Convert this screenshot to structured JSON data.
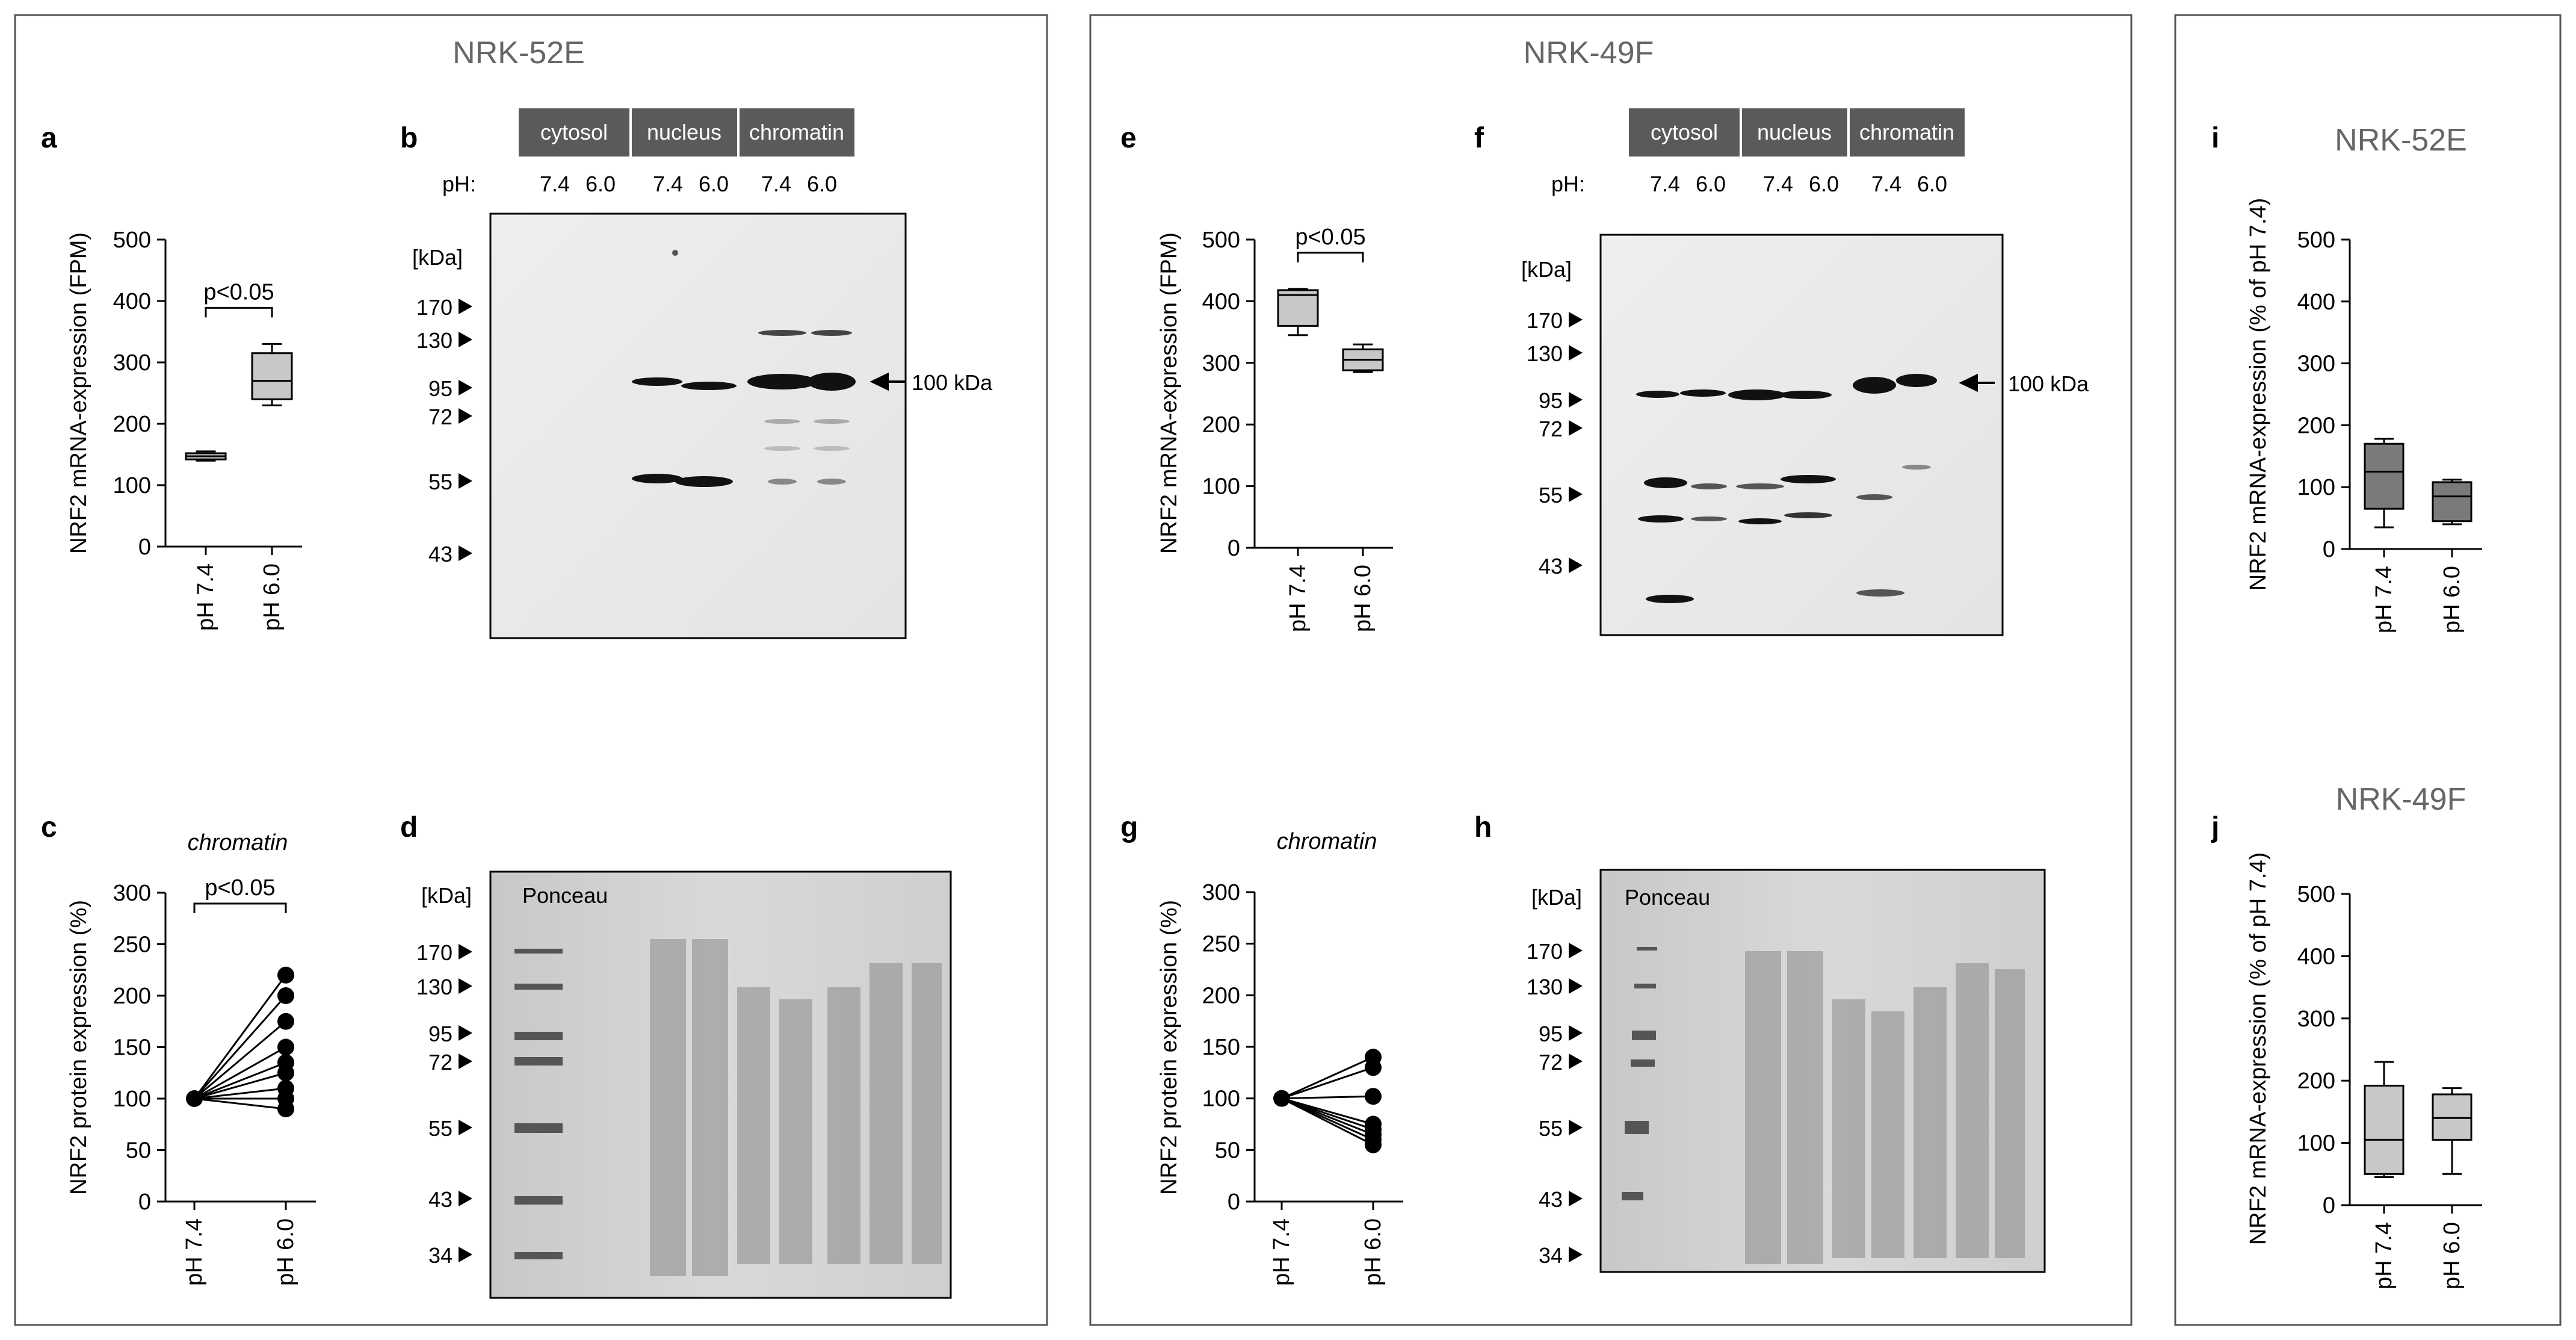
{
  "panels": {
    "left_title": "NRK-52E",
    "mid_title": "NRK-49F",
    "right_top_title": "NRK-52E",
    "right_bottom_title": "NRK-49F"
  },
  "letters": {
    "a": "a",
    "b": "b",
    "c": "c",
    "d": "d",
    "e": "e",
    "f": "f",
    "g": "g",
    "h": "h",
    "i": "i",
    "j": "j"
  },
  "blots": {
    "fractions": [
      "cytosol",
      "nucleus",
      "chromatin"
    ],
    "ph_label": "pH:",
    "lane_ph": [
      "7.4",
      "6.0"
    ],
    "kda_unit": "[kDa]",
    "markers_western": [
      "170",
      "130",
      "95",
      "72",
      "55",
      "43"
    ],
    "markers_ponceau": [
      "170",
      "130",
      "95",
      "72",
      "55",
      "43",
      "34"
    ],
    "band_label": "100 kDa",
    "ponceau_label": "Ponceau",
    "header_color": "#5a5a5a"
  },
  "chromatin_label": "chromatin",
  "chart_data": [
    {
      "id": "a",
      "type": "box",
      "ylabel": "NRF2 mRNA-expression (FPM)",
      "ylim": [
        0,
        500
      ],
      "yticks": [
        0,
        100,
        200,
        300,
        400,
        500
      ],
      "categories": [
        "pH 7.4",
        "pH 6.0"
      ],
      "boxes": [
        {
          "min": 140,
          "q1": 142,
          "median": 147,
          "q3": 152,
          "max": 155,
          "fill": "#c8c8c8"
        },
        {
          "min": 230,
          "q1": 240,
          "median": 270,
          "q3": 315,
          "max": 330,
          "fill": "#c8c8c8"
        }
      ],
      "annotation": "p<0.05"
    },
    {
      "id": "c",
      "type": "paired-scatter",
      "ylabel": "NRF2 protein expression (%)",
      "ylim": [
        0,
        300
      ],
      "yticks": [
        0,
        50,
        100,
        150,
        200,
        250,
        300
      ],
      "categories": [
        "pH 7.4",
        "pH 6.0"
      ],
      "baseline": 100,
      "values": [
        220,
        200,
        175,
        150,
        135,
        125,
        110,
        100,
        90
      ],
      "annotation": "p<0.05"
    },
    {
      "id": "e",
      "type": "box",
      "ylabel": "NRF2 mRNA-expression (FPM)",
      "ylim": [
        0,
        500
      ],
      "yticks": [
        0,
        100,
        200,
        300,
        400,
        500
      ],
      "categories": [
        "pH 7.4",
        "pH 6.0"
      ],
      "boxes": [
        {
          "min": 345,
          "q1": 360,
          "median": 410,
          "q3": 418,
          "max": 420,
          "fill": "#c8c8c8"
        },
        {
          "min": 285,
          "q1": 288,
          "median": 305,
          "q3": 322,
          "max": 330,
          "fill": "#c8c8c8"
        }
      ],
      "annotation": "p<0.05"
    },
    {
      "id": "g",
      "type": "paired-scatter",
      "ylabel": "NRF2 protein expression (%)",
      "ylim": [
        0,
        300
      ],
      "yticks": [
        0,
        50,
        100,
        150,
        200,
        250,
        300
      ],
      "categories": [
        "pH 7.4",
        "pH 6.0"
      ],
      "baseline": 100,
      "values": [
        140,
        130,
        102,
        75,
        70,
        65,
        60,
        55
      ],
      "annotation": ""
    },
    {
      "id": "i",
      "type": "box",
      "ylabel": "NRF2 mRNA-expression (% of pH 7.4)",
      "ylim": [
        0,
        500
      ],
      "yticks": [
        0,
        100,
        200,
        300,
        400,
        500
      ],
      "categories": [
        "pH 7.4",
        "pH 6.0"
      ],
      "boxes": [
        {
          "min": 35,
          "q1": 65,
          "median": 125,
          "q3": 170,
          "max": 178,
          "fill": "#7a7a7a"
        },
        {
          "min": 40,
          "q1": 45,
          "median": 85,
          "q3": 108,
          "max": 112,
          "fill": "#7a7a7a"
        }
      ],
      "annotation": ""
    },
    {
      "id": "j",
      "type": "box",
      "ylabel": "NRF2 mRNA-expression (% of pH 7.4)",
      "ylim": [
        0,
        500
      ],
      "yticks": [
        0,
        100,
        200,
        300,
        400,
        500
      ],
      "categories": [
        "pH 7.4",
        "pH 6.0"
      ],
      "boxes": [
        {
          "min": 45,
          "q1": 50,
          "median": 105,
          "q3": 192,
          "max": 230,
          "fill": "#c8c8c8"
        },
        {
          "min": 50,
          "q1": 105,
          "median": 140,
          "q3": 178,
          "max": 188,
          "fill": "#c8c8c8"
        }
      ],
      "annotation": ""
    }
  ]
}
